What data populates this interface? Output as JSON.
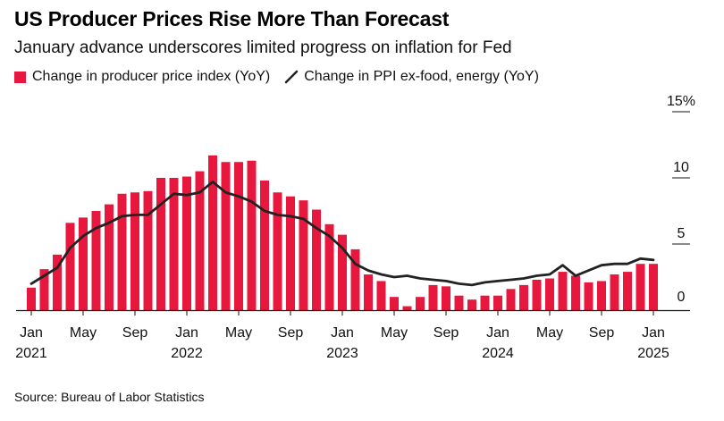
{
  "title": "US Producer Prices Rise More Than Forecast",
  "subtitle": "January advance underscores limited progress on inflation for Fed",
  "legend": {
    "bar_label": "Change in producer price index (YoY)",
    "line_label": "Change in PPI ex-food, energy (YoY)"
  },
  "source": "Source: Bureau of Labor Statistics",
  "colors": {
    "bar": "#e8173e",
    "line": "#222222",
    "axis": "#111111"
  },
  "chart_data": {
    "type": "bar",
    "x": [
      "2021-01",
      "2021-02",
      "2021-03",
      "2021-04",
      "2021-05",
      "2021-06",
      "2021-07",
      "2021-08",
      "2021-09",
      "2021-10",
      "2021-11",
      "2021-12",
      "2022-01",
      "2022-02",
      "2022-03",
      "2022-04",
      "2022-05",
      "2022-06",
      "2022-07",
      "2022-08",
      "2022-09",
      "2022-10",
      "2022-11",
      "2022-12",
      "2023-01",
      "2023-02",
      "2023-03",
      "2023-04",
      "2023-05",
      "2023-06",
      "2023-07",
      "2023-08",
      "2023-09",
      "2023-10",
      "2023-11",
      "2023-12",
      "2024-01",
      "2024-02",
      "2024-03",
      "2024-04",
      "2024-05",
      "2024-06",
      "2024-07",
      "2024-08",
      "2024-09",
      "2024-10",
      "2024-11",
      "2024-12",
      "2025-01"
    ],
    "series": [
      {
        "name": "Change in producer price index (YoY)",
        "type": "bar",
        "values": [
          1.7,
          3.1,
          4.2,
          6.6,
          7.0,
          7.5,
          8.0,
          8.8,
          8.9,
          9.0,
          10.0,
          10.0,
          10.1,
          10.5,
          11.7,
          11.2,
          11.2,
          11.3,
          9.8,
          8.9,
          8.6,
          8.3,
          7.6,
          6.5,
          5.7,
          4.6,
          2.7,
          2.2,
          1.0,
          0.3,
          1.0,
          1.9,
          1.8,
          1.1,
          0.8,
          1.1,
          1.1,
          1.6,
          1.9,
          2.3,
          2.4,
          2.9,
          2.6,
          2.1,
          2.2,
          2.7,
          2.9,
          3.5,
          3.5
        ]
      },
      {
        "name": "Change in PPI ex-food, energy (YoY)",
        "type": "line",
        "values": [
          2.0,
          2.6,
          3.2,
          4.7,
          5.6,
          6.2,
          6.6,
          7.1,
          7.2,
          7.2,
          8.0,
          8.8,
          8.7,
          8.9,
          9.7,
          8.9,
          8.6,
          8.2,
          7.5,
          7.2,
          7.1,
          6.9,
          6.2,
          5.6,
          4.7,
          3.5,
          3.0,
          2.7,
          2.5,
          2.6,
          2.4,
          2.3,
          2.2,
          2.0,
          1.9,
          2.1,
          2.2,
          2.3,
          2.4,
          2.6,
          2.7,
          3.4,
          2.6,
          3.0,
          3.4,
          3.5,
          3.5,
          3.9,
          3.8
        ]
      }
    ],
    "ylim": [
      0,
      15
    ],
    "y_ticks": [
      "15%",
      "10",
      "5",
      "0"
    ],
    "y_tick_values": [
      15,
      10,
      5,
      0
    ],
    "x_ticks": [
      {
        "month": "Jan",
        "year": "2021",
        "at": "2021-01"
      },
      {
        "month": "May",
        "year": "",
        "at": "2021-05"
      },
      {
        "month": "Sep",
        "year": "",
        "at": "2021-09"
      },
      {
        "month": "Jan",
        "year": "2022",
        "at": "2022-01"
      },
      {
        "month": "May",
        "year": "",
        "at": "2022-05"
      },
      {
        "month": "Sep",
        "year": "",
        "at": "2022-09"
      },
      {
        "month": "Jan",
        "year": "2023",
        "at": "2023-01"
      },
      {
        "month": "May",
        "year": "",
        "at": "2023-05"
      },
      {
        "month": "Sep",
        "year": "",
        "at": "2023-09"
      },
      {
        "month": "Jan",
        "year": "2024",
        "at": "2024-01"
      },
      {
        "month": "May",
        "year": "",
        "at": "2024-05"
      },
      {
        "month": "Sep",
        "year": "",
        "at": "2024-09"
      },
      {
        "month": "Jan",
        "year": "2025",
        "at": "2025-01"
      }
    ],
    "y_axis_side": "right",
    "grid": false,
    "legend_position": "top-left"
  }
}
